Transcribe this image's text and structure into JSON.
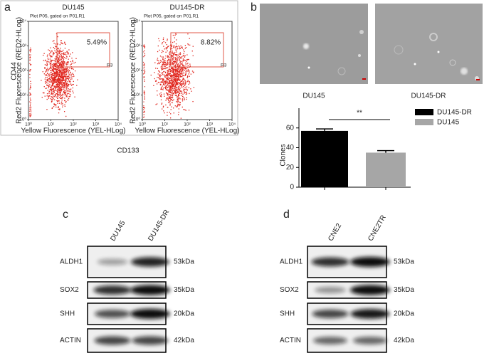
{
  "panel_a": {
    "letter": "a",
    "ylabel": "CD44",
    "xlabel": "CD133",
    "plots": [
      {
        "title": "DU145",
        "subtitle": "Plot P05, gated on P01.R1",
        "percent": "5.49%",
        "region": "R3",
        "y_axis_label": "Red2 Fluorescence (RED2-HLog)",
        "x_axis_label": "Yellow Fluorescence (YEL-HLog)",
        "log": true,
        "xlim": [
          1,
          10000
        ],
        "ylim": [
          1,
          10000
        ],
        "xticks": [
          {
            "value": 1,
            "label": "10⁰"
          },
          {
            "value": 10,
            "label": "10¹"
          },
          {
            "value": 100,
            "label": "10²"
          },
          {
            "value": 1000,
            "label": "10³"
          },
          {
            "value": 10000,
            "label": "10⁴"
          }
        ],
        "yticks": [
          {
            "value": 1,
            "label": "10⁰"
          },
          {
            "value": 10,
            "label": "10¹"
          },
          {
            "value": 100,
            "label": "10²"
          },
          {
            "value": 1000,
            "label": "10³"
          },
          {
            "value": 10000,
            "label": "10⁴"
          }
        ]
      },
      {
        "title": "DU145-DR",
        "subtitle": "Plot P05, gated on P01.R1",
        "percent": "8.82%",
        "region": "R3",
        "y_axis_label": "Red2 Fluorescence (RED2-HLog)",
        "x_axis_label": "Yellow Fluorescence (YEL-HLog)",
        "log": true,
        "xlim": [
          1,
          10000
        ],
        "ylim": [
          1,
          10000
        ],
        "xticks": [
          {
            "value": 1,
            "label": "10⁰"
          },
          {
            "value": 10,
            "label": "10¹"
          },
          {
            "value": 100,
            "label": "10²"
          },
          {
            "value": 1000,
            "label": "10³"
          },
          {
            "value": 10000,
            "label": "10⁴"
          }
        ],
        "yticks": [
          {
            "value": 1,
            "label": "10⁰"
          },
          {
            "value": 10,
            "label": "10¹"
          },
          {
            "value": 100,
            "label": "10²"
          },
          {
            "value": 1000,
            "label": "10³"
          },
          {
            "value": 10000,
            "label": "10⁴"
          }
        ]
      }
    ]
  },
  "panel_b": {
    "letter": "b",
    "image_labels": [
      "DU145",
      "DU145-DR"
    ],
    "significance": "**"
  },
  "chart_data": {
    "type": "bar",
    "ylabel": "Clones",
    "categories": [
      null
    ],
    "series": [
      {
        "name": "DU145-DR",
        "color": "#000000",
        "values": [
          57
        ],
        "errors": [
          2
        ]
      },
      {
        "name": "DU145",
        "color": "#a6a6a6",
        "values": [
          35
        ],
        "errors": [
          2
        ]
      }
    ],
    "ylim": [
      0,
      80
    ],
    "yticks": [
      0,
      20,
      40,
      60
    ],
    "legend": "right"
  },
  "panel_c": {
    "letter": "c",
    "lanes": [
      "DU145",
      "DU145-DR"
    ],
    "rows": [
      {
        "protein": "ALDH1",
        "size": "53kDa"
      },
      {
        "protein": "SOX2",
        "size": "35kDa"
      },
      {
        "protein": "SHH",
        "size": "20kDa"
      },
      {
        "protein": "ACTIN",
        "size": "42kDa"
      }
    ]
  },
  "panel_d": {
    "letter": "d",
    "lanes": [
      "CNE2",
      "CNE2TR"
    ],
    "rows": [
      {
        "protein": "ALDH1",
        "size": "53kDa"
      },
      {
        "protein": "SOX2",
        "size": "35kDa"
      },
      {
        "protein": "SHH",
        "size": "20kDa"
      },
      {
        "protein": "ACTIN",
        "size": "42kDa"
      }
    ]
  }
}
